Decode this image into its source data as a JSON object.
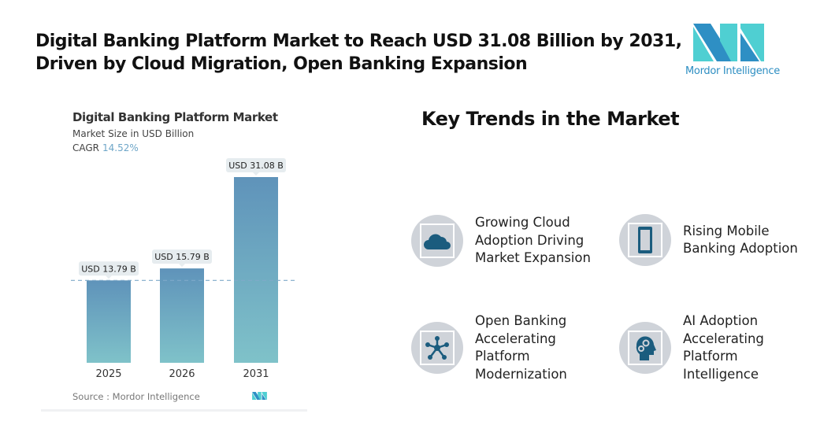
{
  "header": {
    "title_line1": "Digital Banking Platform Market to Reach USD 31.08 Billion by 2031,",
    "title_line2": "Driven by Cloud Migration, Open Banking Expansion",
    "logo_text": "Mordor Intelligence"
  },
  "chart_data": {
    "type": "bar",
    "title": "Digital Banking Platform Market",
    "subtitle": "Market Size in USD Billion",
    "cagr_label": "CAGR",
    "cagr_value": "14.52%",
    "categories": [
      "2025",
      "2026",
      "2031"
    ],
    "values": [
      13.79,
      15.79,
      31.08
    ],
    "data_labels": [
      "USD 13.79 B",
      "USD 15.79 B",
      "USD 31.08 B"
    ],
    "xlabel": "",
    "ylabel": "",
    "ylim": [
      0,
      31.08
    ],
    "grid": false,
    "reference_line": {
      "value": 13.79,
      "style": "dashed"
    },
    "source": "Source :  Mordor Intelligence",
    "colors": {
      "bar_top": "#5f93ba",
      "bar_bottom": "#7fc2c9",
      "ref_line": "#7fa9c9",
      "label_bg": "#e6ecef"
    }
  },
  "trends": {
    "heading": "Key Trends in the Market",
    "items": [
      {
        "icon": "cloud-icon",
        "text": "Growing Cloud Adoption Driving Market Expansion"
      },
      {
        "icon": "mobile-phone-icon",
        "text": "Rising Mobile Banking Adoption"
      },
      {
        "icon": "network-hub-icon",
        "text": "Open Banking Accelerating Platform Modernization"
      },
      {
        "icon": "ai-head-gears-icon",
        "text": "AI Adoption Accelerating Platform Intelligence"
      }
    ],
    "icon_color": "#1b5c7e"
  }
}
